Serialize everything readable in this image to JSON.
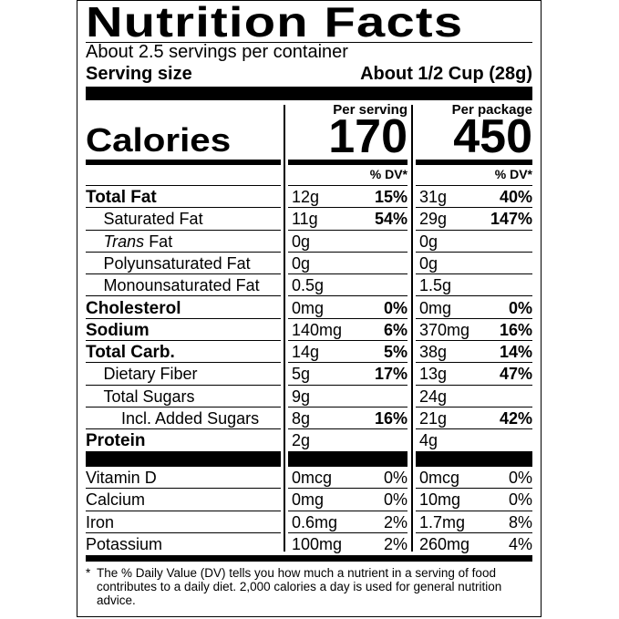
{
  "title": "Nutrition Facts",
  "servings_per_container": "About 2.5 servings per container",
  "serving_size_label": "Serving size",
  "serving_size_value": "About 1/2 Cup (28g)",
  "calories_label": "Calories",
  "columns": [
    {
      "header": "Per serving",
      "calories": "170",
      "dv_header": "% DV*"
    },
    {
      "header": "Per package",
      "calories": "450",
      "dv_header": "% DV*"
    }
  ],
  "nutrients": [
    {
      "label": "Total Fat",
      "major": true,
      "indent": 0,
      "serving": {
        "amount": "12g",
        "dv": "15%"
      },
      "package": {
        "amount": "31g",
        "dv": "40%"
      }
    },
    {
      "label": "Saturated Fat",
      "indent": 1,
      "serving": {
        "amount": "11g",
        "dv": "54%"
      },
      "package": {
        "amount": "29g",
        "dv": "147%"
      }
    },
    {
      "label": "Trans Fat",
      "italic_prefix": "Trans",
      "indent": 1,
      "serving": {
        "amount": "0g",
        "dv": ""
      },
      "package": {
        "amount": "0g",
        "dv": ""
      }
    },
    {
      "label": "Polyunsaturated Fat",
      "indent": 1,
      "serving": {
        "amount": "0g",
        "dv": ""
      },
      "package": {
        "amount": "0g",
        "dv": ""
      }
    },
    {
      "label": "Monounsaturated Fat",
      "indent": 1,
      "serving": {
        "amount": "0.5g",
        "dv": ""
      },
      "package": {
        "amount": "1.5g",
        "dv": ""
      }
    },
    {
      "label": "Cholesterol",
      "major": true,
      "indent": 0,
      "serving": {
        "amount": "0mg",
        "dv": "0%"
      },
      "package": {
        "amount": "0mg",
        "dv": "0%"
      }
    },
    {
      "label": "Sodium",
      "major": true,
      "indent": 0,
      "serving": {
        "amount": "140mg",
        "dv": "6%"
      },
      "package": {
        "amount": "370mg",
        "dv": "16%"
      }
    },
    {
      "label": "Total Carb.",
      "major": true,
      "indent": 0,
      "serving": {
        "amount": "14g",
        "dv": "5%"
      },
      "package": {
        "amount": "38g",
        "dv": "14%"
      }
    },
    {
      "label": "Dietary Fiber",
      "indent": 1,
      "serving": {
        "amount": "5g",
        "dv": "17%"
      },
      "package": {
        "amount": "13g",
        "dv": "47%"
      }
    },
    {
      "label": "Total Sugars",
      "indent": 1,
      "serving": {
        "amount": "9g",
        "dv": ""
      },
      "package": {
        "amount": "24g",
        "dv": ""
      }
    },
    {
      "label": "Incl. Added Sugars",
      "indent": 2,
      "serving": {
        "amount": "8g",
        "dv": "16%"
      },
      "package": {
        "amount": "21g",
        "dv": "42%"
      }
    },
    {
      "label": "Protein",
      "major": true,
      "indent": 0,
      "serving": {
        "amount": "2g",
        "dv": ""
      },
      "package": {
        "amount": "4g",
        "dv": ""
      }
    }
  ],
  "vitamins": [
    {
      "label": "Vitamin D",
      "serving": {
        "amount": "0mcg",
        "dv": "0%"
      },
      "package": {
        "amount": "0mcg",
        "dv": "0%"
      }
    },
    {
      "label": "Calcium",
      "serving": {
        "amount": "0mg",
        "dv": "0%"
      },
      "package": {
        "amount": "10mg",
        "dv": "0%"
      }
    },
    {
      "label": "Iron",
      "serving": {
        "amount": "0.6mg",
        "dv": "2%"
      },
      "package": {
        "amount": "1.7mg",
        "dv": "8%"
      }
    },
    {
      "label": "Potassium",
      "serving": {
        "amount": "100mg",
        "dv": "2%"
      },
      "package": {
        "amount": "260mg",
        "dv": "4%"
      }
    }
  ],
  "footnote": "The % Daily Value (DV) tells you how much a nutrient in a serving of food contributes to a daily diet. 2,000 calories a day is used for general nutrition advice.",
  "footnote_marker": "*"
}
